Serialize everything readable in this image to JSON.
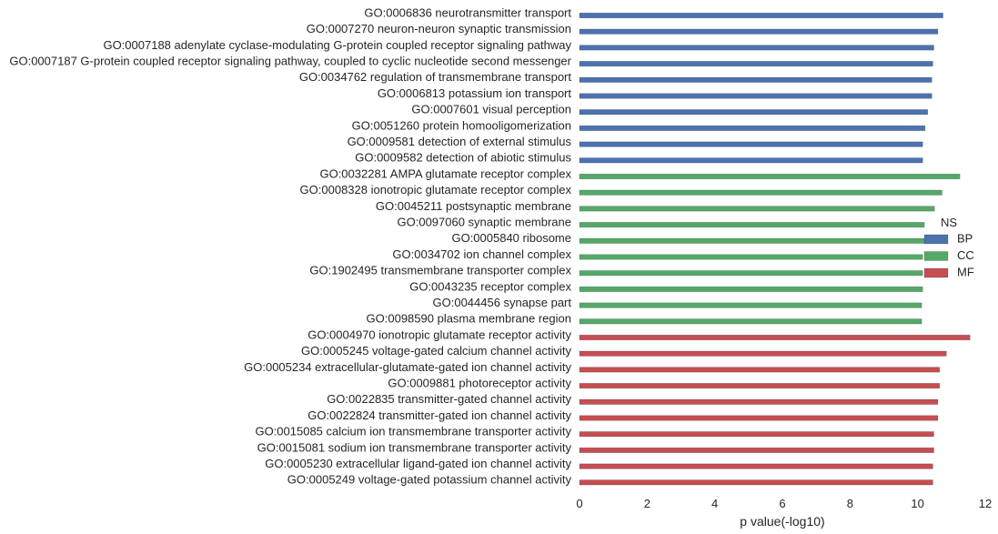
{
  "chart_data": {
    "type": "bar",
    "orientation": "horizontal",
    "xlabel": "p value(-log10)",
    "ylabel": "",
    "xlim": [
      0,
      12
    ],
    "xticks": [
      0,
      2,
      4,
      6,
      8,
      10,
      12
    ],
    "grid": false,
    "legend": {
      "title": "NS",
      "placement": "right",
      "entries": [
        {
          "name": "BP",
          "color": "#4c72b0"
        },
        {
          "name": "CC",
          "color": "#55a868"
        },
        {
          "name": "MF",
          "color": "#c44e52"
        }
      ]
    },
    "bars": [
      {
        "label": "GO:0006836 neurotransmitter transport",
        "value": 10.75,
        "ns": "BP"
      },
      {
        "label": "GO:0007270 neuron-neuron synaptic transmission",
        "value": 10.6,
        "ns": "BP"
      },
      {
        "label": "GO:0007188 adenylate cyclase-modulating G-protein coupled receptor signaling pathway",
        "value": 10.48,
        "ns": "BP"
      },
      {
        "label": "GO:0007187 G-protein coupled receptor signaling pathway, coupled to cyclic nucleotide second messenger",
        "value": 10.45,
        "ns": "BP"
      },
      {
        "label": "GO:0034762 regulation of transmembrane transport",
        "value": 10.42,
        "ns": "BP"
      },
      {
        "label": "GO:0006813 potassium ion transport",
        "value": 10.42,
        "ns": "BP"
      },
      {
        "label": "GO:0007601 visual perception",
        "value": 10.3,
        "ns": "BP"
      },
      {
        "label": "GO:0051260 protein homooligomerization",
        "value": 10.22,
        "ns": "BP"
      },
      {
        "label": "GO:0009581 detection of external stimulus",
        "value": 10.15,
        "ns": "BP"
      },
      {
        "label": "GO:0009582 detection of abiotic stimulus",
        "value": 10.15,
        "ns": "BP"
      },
      {
        "label": "GO:0032281 AMPA glutamate receptor complex",
        "value": 11.25,
        "ns": "CC"
      },
      {
        "label": "GO:0008328 ionotropic glutamate receptor complex",
        "value": 10.72,
        "ns": "CC"
      },
      {
        "label": "GO:0045211 postsynaptic membrane",
        "value": 10.5,
        "ns": "CC"
      },
      {
        "label": "GO:0097060 synaptic membrane",
        "value": 10.2,
        "ns": "CC"
      },
      {
        "label": "GO:0005840 ribosome",
        "value": 10.2,
        "ns": "CC"
      },
      {
        "label": "GO:0034702 ion channel complex",
        "value": 10.15,
        "ns": "CC"
      },
      {
        "label": "GO:1902495 transmembrane transporter complex",
        "value": 10.15,
        "ns": "CC"
      },
      {
        "label": "GO:0043235 receptor complex",
        "value": 10.15,
        "ns": "CC"
      },
      {
        "label": "GO:0044456 synapse part",
        "value": 10.12,
        "ns": "CC"
      },
      {
        "label": "GO:0098590 plasma membrane region",
        "value": 10.12,
        "ns": "CC"
      },
      {
        "label": "GO:0004970 ionotropic glutamate receptor activity",
        "value": 11.55,
        "ns": "MF"
      },
      {
        "label": "GO:0005245 voltage-gated calcium channel activity",
        "value": 10.85,
        "ns": "MF"
      },
      {
        "label": "GO:0005234 extracellular-glutamate-gated ion channel activity",
        "value": 10.65,
        "ns": "MF"
      },
      {
        "label": "GO:0009881 photoreceptor activity",
        "value": 10.65,
        "ns": "MF"
      },
      {
        "label": "GO:0022835 transmitter-gated channel activity",
        "value": 10.6,
        "ns": "MF"
      },
      {
        "label": "GO:0022824 transmitter-gated ion channel activity",
        "value": 10.6,
        "ns": "MF"
      },
      {
        "label": "GO:0015085 calcium ion transmembrane transporter activity",
        "value": 10.48,
        "ns": "MF"
      },
      {
        "label": "GO:0015081 sodium ion transmembrane transporter activity",
        "value": 10.48,
        "ns": "MF"
      },
      {
        "label": "GO:0005230 extracellular ligand-gated ion channel activity",
        "value": 10.45,
        "ns": "MF"
      },
      {
        "label": "GO:0005249 voltage-gated potassium channel activity",
        "value": 10.45,
        "ns": "MF"
      }
    ]
  }
}
